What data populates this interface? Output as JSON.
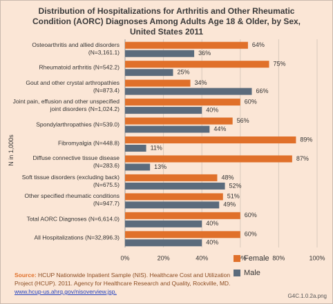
{
  "chart_data": {
    "type": "hbar",
    "title": "Distribution of Hospitalizations for Arthritis and Other Rheumatic Condition (AORC) Diagnoses Among Adults Age 18 & Older, by Sex, United States 2011",
    "y_axis_label": "N in 1,000s",
    "categories": [
      "Osteoarthritis and allied disorders (N=3,161.1)",
      "Rheumatoid arthritis (N=542.2)",
      "Gout and other crystal arthropathies (N=873.4)",
      "Joint pain, effusion and other unspecified joint disorders (N=1,024.2)",
      "Spondylarthropathies (N=539.0)",
      "Fibromyalgia (N=448.8)",
      "Diffuse connective tissue disease (N=283.6)",
      "Soft tissue disorders (excluding back) (N=675.5)",
      "Other specified rheumatic conditions (N=947.7)",
      "Total AORC Diagnoses (N=6,614.0)",
      "All Hospitalizations (N=32,896.3)"
    ],
    "series": [
      {
        "name": "Female",
        "color": "#e0702a",
        "values": [
          64,
          75,
          34,
          60,
          56,
          89,
          87,
          48,
          51,
          60,
          60
        ],
        "value_labels": [
          "64%",
          "75%",
          "34%",
          "60%",
          "56%",
          "89%",
          "87%",
          "48%",
          "51%",
          "60%",
          "60%"
        ]
      },
      {
        "name": "Male",
        "color": "#5b6b7c",
        "values": [
          36,
          25,
          66,
          40,
          44,
          11,
          13,
          52,
          49,
          40,
          40
        ],
        "value_labels": [
          "36%",
          "25%",
          "66%",
          "40%",
          "44%",
          "11%",
          "13%",
          "52%",
          "49%",
          "40%",
          "40%"
        ]
      }
    ],
    "xlim": [
      0,
      100
    ],
    "xticks": [
      {
        "value": 0,
        "label": "0%"
      },
      {
        "value": 20,
        "label": "20%"
      },
      {
        "value": 40,
        "label": "40%"
      },
      {
        "value": 60,
        "label": "60%"
      },
      {
        "value": 80,
        "label": "80%"
      },
      {
        "value": 100,
        "label": "100%"
      }
    ],
    "grid": true,
    "legend": "bottom-right",
    "source_label": "Source:",
    "source_text": "HCUP Nationwide Inpatient Sample (NIS). Healthcare Cost and Utilization Project (HCUP). 2011. Agency for Healthcare Research and Quality, Rockville, MD.",
    "source_link": "www.hcup-us.ahrq.gov/nisoverview.jsp.",
    "image_id": "G4C.1.0.2a.png"
  }
}
